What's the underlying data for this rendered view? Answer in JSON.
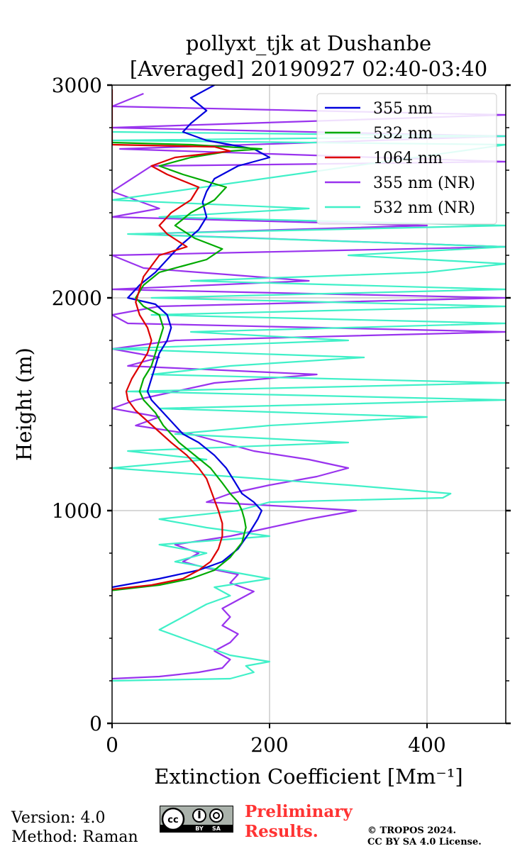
{
  "chart_data": {
    "type": "line",
    "title_line1": "pollyxt_tjk at Dushanbe",
    "title_line2": "[Averaged] 20190927 02:40-03:40",
    "xlabel": "Extinction Coefficient [Mm⁻¹]",
    "ylabel": "Height (m)",
    "xlim": [
      0,
      500
    ],
    "ylim": [
      0,
      3000
    ],
    "x_ticks": [
      0,
      200,
      400
    ],
    "y_ticks": [
      0,
      1000,
      2000,
      3000
    ],
    "grid": true,
    "legend_position": "top-right",
    "series": [
      {
        "name": "355 nm",
        "color": "#0000dd",
        "points": [
          [
            0,
            640
          ],
          [
            60,
            680
          ],
          [
            110,
            720
          ],
          [
            140,
            760
          ],
          [
            160,
            820
          ],
          [
            175,
            900
          ],
          [
            185,
            960
          ],
          [
            190,
            1000
          ],
          [
            180,
            1040
          ],
          [
            165,
            1080
          ],
          [
            155,
            1140
          ],
          [
            145,
            1200
          ],
          [
            130,
            1260
          ],
          [
            110,
            1320
          ],
          [
            90,
            1360
          ],
          [
            80,
            1400
          ],
          [
            65,
            1460
          ],
          [
            50,
            1520
          ],
          [
            45,
            1560
          ],
          [
            50,
            1620
          ],
          [
            55,
            1680
          ],
          [
            60,
            1740
          ],
          [
            70,
            1800
          ],
          [
            75,
            1860
          ],
          [
            70,
            1920
          ],
          [
            55,
            1970
          ],
          [
            20,
            2000
          ],
          [
            35,
            2060
          ],
          [
            55,
            2120
          ],
          [
            70,
            2180
          ],
          [
            85,
            2240
          ],
          [
            110,
            2320
          ],
          [
            120,
            2380
          ],
          [
            115,
            2450
          ],
          [
            120,
            2500
          ],
          [
            130,
            2560
          ],
          [
            160,
            2620
          ],
          [
            200,
            2660
          ],
          [
            180,
            2700
          ],
          [
            120,
            2740
          ],
          [
            90,
            2780
          ],
          [
            100,
            2820
          ],
          [
            120,
            2880
          ],
          [
            100,
            2940
          ],
          [
            130,
            3000
          ]
        ]
      },
      {
        "name": "532 nm",
        "color": "#00aa00",
        "points": [
          [
            0,
            625
          ],
          [
            60,
            650
          ],
          [
            100,
            680
          ],
          [
            130,
            720
          ],
          [
            150,
            780
          ],
          [
            165,
            850
          ],
          [
            170,
            920
          ],
          [
            168,
            960
          ],
          [
            165,
            1000
          ],
          [
            160,
            1040
          ],
          [
            150,
            1080
          ],
          [
            140,
            1130
          ],
          [
            125,
            1200
          ],
          [
            105,
            1260
          ],
          [
            85,
            1320
          ],
          [
            75,
            1360
          ],
          [
            65,
            1400
          ],
          [
            55,
            1460
          ],
          [
            40,
            1520
          ],
          [
            35,
            1560
          ],
          [
            40,
            1620
          ],
          [
            50,
            1680
          ],
          [
            55,
            1740
          ],
          [
            60,
            1800
          ],
          [
            65,
            1860
          ],
          [
            60,
            1920
          ],
          [
            40,
            1960
          ],
          [
            30,
            2000
          ],
          [
            40,
            2060
          ],
          [
            60,
            2120
          ],
          [
            120,
            2180
          ],
          [
            140,
            2230
          ],
          [
            105,
            2280
          ],
          [
            80,
            2340
          ],
          [
            100,
            2400
          ],
          [
            130,
            2460
          ],
          [
            145,
            2520
          ],
          [
            90,
            2580
          ],
          [
            60,
            2620
          ],
          [
            100,
            2660
          ],
          [
            150,
            2690
          ],
          [
            190,
            2700
          ],
          [
            100,
            2720
          ],
          [
            0,
            2730
          ]
        ]
      },
      {
        "name": "1064 nm",
        "color": "#dd0000",
        "points": [
          [
            0,
            630
          ],
          [
            50,
            650
          ],
          [
            90,
            680
          ],
          [
            110,
            720
          ],
          [
            125,
            760
          ],
          [
            135,
            820
          ],
          [
            140,
            880
          ],
          [
            140,
            940
          ],
          [
            135,
            1000
          ],
          [
            130,
            1050
          ],
          [
            125,
            1100
          ],
          [
            120,
            1150
          ],
          [
            110,
            1200
          ],
          [
            95,
            1260
          ],
          [
            75,
            1320
          ],
          [
            60,
            1370
          ],
          [
            45,
            1420
          ],
          [
            30,
            1470
          ],
          [
            20,
            1520
          ],
          [
            18,
            1560
          ],
          [
            25,
            1620
          ],
          [
            35,
            1680
          ],
          [
            45,
            1740
          ],
          [
            50,
            1800
          ],
          [
            45,
            1860
          ],
          [
            35,
            1920
          ],
          [
            30,
            1980
          ],
          [
            35,
            2040
          ],
          [
            40,
            2100
          ],
          [
            50,
            2150
          ],
          [
            60,
            2200
          ],
          [
            95,
            2240
          ],
          [
            70,
            2300
          ],
          [
            60,
            2340
          ],
          [
            75,
            2400
          ],
          [
            100,
            2460
          ],
          [
            110,
            2520
          ],
          [
            70,
            2580
          ],
          [
            50,
            2620
          ],
          [
            80,
            2660
          ],
          [
            150,
            2690
          ],
          [
            130,
            2710
          ],
          [
            0,
            2720
          ],
          [
            0,
            2980
          ]
        ]
      },
      {
        "name": "355 nm (NR)",
        "color": "#9933ee",
        "points": [
          [
            0,
            210
          ],
          [
            60,
            220
          ],
          [
            110,
            240
          ],
          [
            140,
            260
          ],
          [
            150,
            300
          ],
          [
            130,
            340
          ],
          [
            150,
            380
          ],
          [
            160,
            420
          ],
          [
            140,
            460
          ],
          [
            150,
            500
          ],
          [
            140,
            540
          ],
          [
            160,
            580
          ],
          [
            180,
            620
          ],
          [
            150,
            660
          ],
          [
            160,
            700
          ],
          [
            120,
            730
          ],
          [
            90,
            760
          ],
          [
            110,
            800
          ],
          [
            80,
            840
          ],
          [
            150,
            880
          ],
          [
            200,
            920
          ],
          [
            250,
            960
          ],
          [
            310,
            1000
          ],
          [
            220,
            1020
          ],
          [
            120,
            1040
          ],
          [
            150,
            1080
          ],
          [
            200,
            1120
          ],
          [
            260,
            1160
          ],
          [
            300,
            1200
          ],
          [
            250,
            1240
          ],
          [
            180,
            1280
          ],
          [
            140,
            1320
          ],
          [
            100,
            1360
          ],
          [
            30,
            1400
          ],
          [
            60,
            1440
          ],
          [
            0,
            1480
          ],
          [
            30,
            1520
          ],
          [
            80,
            1560
          ],
          [
            130,
            1600
          ],
          [
            260,
            1640
          ],
          [
            20,
            1680
          ],
          [
            60,
            1720
          ],
          [
            0,
            1760
          ],
          [
            80,
            1800
          ],
          [
            500,
            1840
          ],
          [
            20,
            1880
          ],
          [
            0,
            1920
          ],
          [
            60,
            1960
          ],
          [
            500,
            2000
          ],
          [
            0,
            2040
          ],
          [
            250,
            2080
          ],
          [
            40,
            2140
          ],
          [
            0,
            2200
          ],
          [
            500,
            2240
          ],
          [
            30,
            2300
          ],
          [
            400,
            2340
          ],
          [
            0,
            2380
          ],
          [
            60,
            2420
          ],
          [
            0,
            2500
          ],
          [
            50,
            2620
          ],
          [
            500,
            2640
          ],
          [
            10,
            2700
          ],
          [
            500,
            2760
          ],
          [
            0,
            2800
          ],
          [
            500,
            2860
          ],
          [
            0,
            2900
          ],
          [
            40,
            2960
          ]
        ]
      },
      {
        "name": "532 nm (NR)",
        "color": "#40f0c8",
        "points": [
          [
            0,
            200
          ],
          [
            150,
            210
          ],
          [
            180,
            240
          ],
          [
            170,
            270
          ],
          [
            200,
            290
          ],
          [
            150,
            320
          ],
          [
            120,
            360
          ],
          [
            90,
            400
          ],
          [
            60,
            440
          ],
          [
            80,
            480
          ],
          [
            100,
            520
          ],
          [
            120,
            560
          ],
          [
            150,
            600
          ],
          [
            130,
            640
          ],
          [
            200,
            680
          ],
          [
            140,
            720
          ],
          [
            80,
            760
          ],
          [
            120,
            800
          ],
          [
            60,
            840
          ],
          [
            200,
            880
          ],
          [
            120,
            920
          ],
          [
            60,
            960
          ],
          [
            160,
            1000
          ],
          [
            200,
            1040
          ],
          [
            420,
            1060
          ],
          [
            430,
            1080
          ],
          [
            300,
            1120
          ],
          [
            150,
            1160
          ],
          [
            0,
            1200
          ],
          [
            120,
            1240
          ],
          [
            20,
            1280
          ],
          [
            300,
            1320
          ],
          [
            80,
            1360
          ],
          [
            200,
            1400
          ],
          [
            400,
            1440
          ],
          [
            60,
            1480
          ],
          [
            500,
            1520
          ],
          [
            20,
            1560
          ],
          [
            500,
            1600
          ],
          [
            50,
            1640
          ],
          [
            150,
            1680
          ],
          [
            320,
            1720
          ],
          [
            0,
            1760
          ],
          [
            300,
            1800
          ],
          [
            100,
            1840
          ],
          [
            500,
            1880
          ],
          [
            50,
            1920
          ],
          [
            500,
            1960
          ],
          [
            50,
            2000
          ],
          [
            500,
            2040
          ],
          [
            100,
            2080
          ],
          [
            400,
            2120
          ],
          [
            500,
            2160
          ],
          [
            300,
            2200
          ],
          [
            500,
            2240
          ],
          [
            20,
            2300
          ],
          [
            500,
            2340
          ],
          [
            60,
            2380
          ],
          [
            250,
            2420
          ],
          [
            0,
            2460
          ],
          [
            500,
            2720
          ],
          [
            0,
            2740
          ],
          [
            500,
            2760
          ],
          [
            0,
            2780
          ]
        ]
      }
    ]
  },
  "footer": {
    "version": "Version: 4.0",
    "method": "Method: Raman",
    "prelim_line1": "Preliminary",
    "prelim_line2": "Results.",
    "copyright_line1": "© TROPOS 2024.",
    "copyright_line2": "CC BY SA 4.0 License.",
    "cc_label": "cc",
    "by_label": "BY",
    "sa_label": "SA"
  }
}
